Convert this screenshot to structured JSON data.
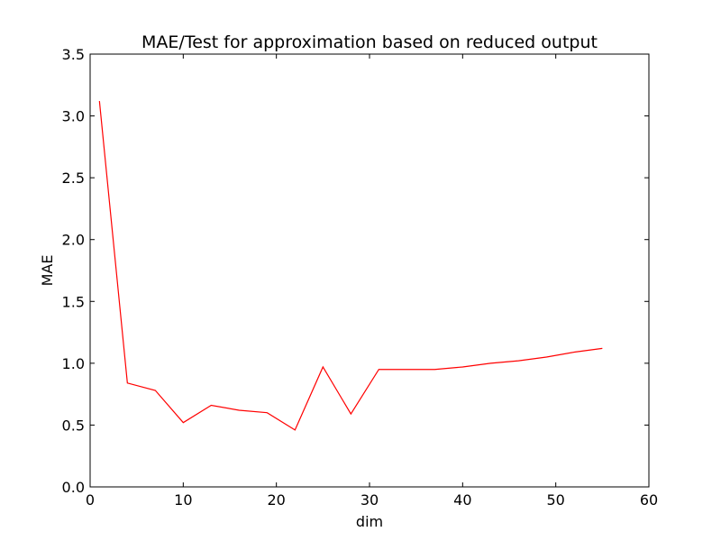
{
  "chart_data": {
    "type": "line",
    "title": "MAE/Test for approximation based on reduced output",
    "xlabel": "dim",
    "ylabel": "MAE",
    "xlim": [
      0,
      60
    ],
    "ylim": [
      0,
      3.5
    ],
    "xticks": [
      0,
      10,
      20,
      30,
      40,
      50,
      60
    ],
    "yticks": [
      0.0,
      0.5,
      1.0,
      1.5,
      2.0,
      2.5,
      3.0,
      3.5
    ],
    "xtick_labels": [
      "0",
      "10",
      "20",
      "30",
      "40",
      "50",
      "60"
    ],
    "ytick_labels": [
      "0.0",
      "0.5",
      "1.0",
      "1.5",
      "2.0",
      "2.5",
      "3.0",
      "3.5"
    ],
    "grid": false,
    "series": [
      {
        "color": "#ff0000",
        "x": [
          1,
          4,
          7,
          10,
          13,
          16,
          19,
          22,
          25,
          28,
          31,
          34,
          37,
          40,
          43,
          46,
          49,
          52,
          55
        ],
        "y": [
          3.12,
          0.84,
          0.78,
          0.52,
          0.66,
          0.62,
          0.6,
          0.46,
          0.97,
          0.59,
          0.95,
          0.95,
          0.95,
          0.97,
          1.0,
          1.02,
          1.05,
          1.09,
          1.12
        ]
      }
    ]
  }
}
